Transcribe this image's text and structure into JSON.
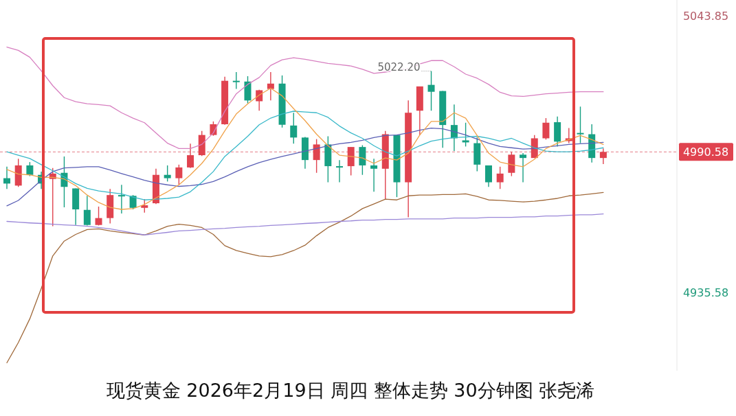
{
  "chart_data": {
    "type": "candlestick",
    "title": "现货黄金 2026年2月19日 周四 整体走势 30分钟图 张尧浠",
    "categories": [
      null,
      null,
      null,
      null,
      null,
      null,
      null,
      null,
      null,
      null,
      null,
      null,
      null,
      null,
      null,
      null,
      null,
      null,
      null,
      null,
      null,
      null,
      null,
      null,
      null,
      null,
      null,
      null,
      null,
      null,
      null,
      null,
      null,
      null,
      null,
      null,
      null,
      null,
      null,
      null,
      null,
      null,
      null,
      null,
      null,
      null,
      null,
      null,
      null,
      null,
      null,
      null,
      null
    ],
    "ohlc": [
      [
        4980.3,
        4984.8,
        4976.1,
        4978.2
      ],
      [
        4977.4,
        4987.9,
        4976.9,
        4985.3
      ],
      [
        4985.3,
        4986.6,
        4981.1,
        4981.6
      ],
      [
        4981.6,
        4982.9,
        4976.1,
        4978.2
      ],
      [
        4980.0,
        4984.3,
        4961.5,
        4982.1
      ],
      [
        4982.4,
        4988.8,
        4968.9,
        4976.9
      ],
      [
        4976.3,
        4976.3,
        4962.0,
        4968.1
      ],
      [
        4967.9,
        4973.4,
        4961.8,
        4962.0
      ],
      [
        4962.0,
        4969.2,
        4961.8,
        4964.7
      ],
      [
        4964.7,
        4976.1,
        4962.6,
        4973.7
      ],
      [
        4973.7,
        4977.7,
        4966.5,
        4973.2
      ],
      [
        4973.4,
        4973.7,
        4968.1,
        4968.7
      ],
      [
        4968.7,
        4972.1,
        4966.8,
        4969.7
      ],
      [
        4970.5,
        4984.0,
        4970.2,
        4981.6
      ],
      [
        4981.6,
        4985.3,
        4979.0,
        4980.3
      ],
      [
        4980.3,
        4985.6,
        4977.7,
        4984.5
      ],
      [
        4984.5,
        4993.8,
        4984.3,
        4989.3
      ],
      [
        4989.3,
        4998.8,
        4989.0,
        4997.2
      ],
      [
        4997.2,
        5002.5,
        4996.9,
        5001.4
      ],
      [
        5001.4,
        5020.0,
        5001.2,
        5018.4
      ],
      [
        5018.4,
        5021.8,
        5015.2,
        5018.1
      ],
      [
        5018.1,
        5020.2,
        5009.6,
        5010.7
      ],
      [
        5010.4,
        5014.9,
        5006.7,
        5014.7
      ],
      [
        5015.2,
        5021.8,
        5010.7,
        5017.3
      ],
      [
        5017.3,
        5020.5,
        5000.1,
        5001.2
      ],
      [
        5000.9,
        5005.9,
        4993.8,
        4996.2
      ],
      [
        4996.2,
        4996.4,
        4984.0,
        4987.4
      ],
      [
        4987.4,
        4995.6,
        4982.4,
        4993.5
      ],
      [
        4993.5,
        4996.7,
        4978.7,
        4985.0
      ],
      [
        4985.0,
        4987.4,
        4978.7,
        4984.8
      ],
      [
        4985.0,
        4992.5,
        4981.4,
        4992.5
      ],
      [
        4992.5,
        4993.2,
        4981.6,
        4985.3
      ],
      [
        4985.3,
        4987.9,
        4975.0,
        4984.0
      ],
      [
        4984.0,
        4998.8,
        4972.1,
        4997.5
      ],
      [
        4997.2,
        4997.2,
        4972.9,
        4978.7
      ],
      [
        4978.7,
        5010.7,
        4965.0,
        5005.9
      ],
      [
        5006.7,
        5016.2,
        4997.2,
        5016.2
      ],
      [
        5016.8,
        5022.2,
        5006.7,
        5014.1
      ],
      [
        5014.4,
        5014.4,
        4992.2,
        5001.1
      ],
      [
        5001.1,
        5009.1,
        4990.9,
        4995.9
      ],
      [
        4995.1,
        5002.0,
        4992.7,
        4994.3
      ],
      [
        4994.0,
        4996.2,
        4983.0,
        4985.6
      ],
      [
        4985.3,
        4985.3,
        4976.9,
        4978.7
      ],
      [
        4978.7,
        4984.8,
        4976.1,
        4982.1
      ],
      [
        4982.4,
        4990.6,
        4981.1,
        4989.5
      ],
      [
        4989.5,
        4990.1,
        4978.7,
        4988.2
      ],
      [
        4988.2,
        4997.2,
        4988.2,
        4995.9
      ],
      [
        4995.9,
        5003.8,
        4995.4,
        5002.0
      ],
      [
        5002.2,
        5004.4,
        4992.7,
        4994.6
      ],
      [
        4994.8,
        4999.9,
        4994.0,
        4995.9
      ],
      [
        4998.0,
        5008.3,
        4994.0,
        4997.7
      ],
      [
        4997.5,
        5001.4,
        4986.4,
        4988.2
      ],
      [
        4988.2,
        4991.9,
        4985.8,
        4990.58
      ]
    ],
    "colors": [
      "#17a083",
      "#e0434f",
      "#17a083",
      "#17a083",
      "#e0434f",
      "#17a083",
      "#17a083",
      "#17a083",
      "#e0434f",
      "#e0434f",
      "#17a083",
      "#17a083",
      "#e0434f",
      "#e0434f",
      "#17a083",
      "#e0434f",
      "#e0434f",
      "#e0434f",
      "#e0434f",
      "#e0434f",
      "#17a083",
      "#17a083",
      "#e0434f",
      "#e0434f",
      "#17a083",
      "#17a083",
      "#17a083",
      "#e0434f",
      "#17a083",
      "#17a083",
      "#e0434f",
      "#17a083",
      "#17a083",
      "#e0434f",
      "#17a083",
      "#e0434f",
      "#e0434f",
      "#17a083",
      "#17a083",
      "#17a083",
      "#17a083",
      "#17a083",
      "#17a083",
      "#e0434f",
      "#e0434f",
      "#17a083",
      "#e0434f",
      "#e0434f",
      "#17a083",
      "#e0434f",
      "#17a083",
      "#17a083",
      "#e0434f"
    ],
    "series": [
      {
        "type": "line",
        "color": "#d77fc0",
        "values": [
          5031.6,
          5030.3,
          5027.6,
          5022.3,
          5016.5,
          5011.8,
          5010.2,
          5009.4,
          5009.1,
          5008.6,
          5005.9,
          5003.8,
          5002.0,
          4998.0,
          4994.0,
          4991.9,
          4991.9,
          4993.5,
          4998.0,
          5006.5,
          5013.3,
          5017.0,
          5019.7,
          5024.4,
          5026.6,
          5027.4,
          5026.8,
          5026.0,
          5025.2,
          5024.7,
          5024.2,
          5022.9,
          5021.3,
          5021.8,
          5022.6,
          5023.1,
          5025.0,
          5026.3,
          5026.3,
          5023.9,
          5021.0,
          5019.4,
          5017.0,
          5013.9,
          5012.5,
          5012.3,
          5012.8,
          5013.3,
          5013.6,
          5013.9,
          5014.1,
          5014.1,
          5014.1
        ]
      },
      {
        "type": "line",
        "color": "#a0693a",
        "values": [
          4908.1,
          4916.0,
          4925.3,
          4937.2,
          4949.9,
          4955.7,
          4958.3,
          4960.2,
          4960.5,
          4959.7,
          4959.1,
          4958.6,
          4958.1,
          4959.7,
          4961.5,
          4962.3,
          4961.8,
          4961.0,
          4958.3,
          4953.9,
          4952.0,
          4950.9,
          4949.9,
          4949.6,
          4950.4,
          4952.0,
          4954.1,
          4957.8,
          4961.0,
          4963.1,
          4965.5,
          4968.4,
          4970.2,
          4972.1,
          4971.8,
          4973.4,
          4973.7,
          4973.7,
          4973.9,
          4973.9,
          4974.2,
          4973.2,
          4971.8,
          4971.6,
          4971.3,
          4971.0,
          4971.3,
          4971.8,
          4972.4,
          4973.4,
          4973.7,
          4974.2,
          4974.7
        ]
      },
      {
        "type": "line",
        "color": "#9a87d8",
        "values": [
          4963.4,
          4963.1,
          4962.8,
          4962.6,
          4962.3,
          4962.0,
          4961.8,
          4961.5,
          4961.0,
          4960.5,
          4959.7,
          4958.9,
          4958.1,
          4958.6,
          4959.1,
          4959.7,
          4959.9,
          4960.2,
          4960.5,
          4960.7,
          4961.0,
          4961.3,
          4961.5,
          4961.8,
          4962.0,
          4962.3,
          4962.6,
          4962.8,
          4963.1,
          4963.4,
          4963.6,
          4963.9,
          4963.9,
          4964.2,
          4964.2,
          4964.4,
          4964.4,
          4964.4,
          4964.4,
          4964.7,
          4964.7,
          4964.7,
          4965.0,
          4965.0,
          4965.0,
          4965.2,
          4965.2,
          4965.5,
          4965.5,
          4965.8,
          4966.0,
          4966.0,
          4966.3
        ]
      },
      {
        "type": "line",
        "color": "#5a5fb5",
        "values": [
          4969.5,
          4971.6,
          4975.5,
          4979.5,
          4982.9,
          4984.3,
          4984.5,
          4984.8,
          4984.8,
          4983.5,
          4982.1,
          4980.8,
          4979.5,
          4978.4,
          4977.7,
          4977.1,
          4977.4,
          4977.9,
          4979.0,
          4980.8,
          4982.9,
          4984.8,
          4986.4,
          4987.7,
          4988.8,
          4989.8,
          4990.9,
          4991.9,
          4993.0,
          4993.8,
          4994.3,
          4995.1,
          4996.2,
          4997.0,
          4997.2,
          4998.0,
          4999.1,
          4999.9,
          4999.6,
          4998.5,
          4997.2,
          4995.6,
          4994.0,
          4992.7,
          4992.2,
          4991.7,
          4991.9,
          4992.5,
          4993.0,
          4993.5,
          4993.8,
          4994.0,
          4994.3
        ]
      },
      {
        "type": "line",
        "color": "#38b8c9",
        "values": [
          4990.6,
          4989.3,
          4988.0,
          4985.6,
          4983.2,
          4980.8,
          4978.2,
          4976.3,
          4975.3,
          4974.7,
          4974.2,
          4972.9,
          4971.8,
          4972.1,
          4972.4,
          4972.9,
          4975.0,
          4978.7,
          4982.9,
          4988.8,
          4992.7,
          4996.7,
          5001.2,
          5003.8,
          5005.4,
          5006.5,
          5006.2,
          5005.9,
          5004.1,
          5000.7,
          4998.0,
          4995.9,
          4993.0,
          4990.6,
          4989.0,
          4990.9,
          4993.0,
          4994.8,
          4995.6,
          4996.2,
          4996.4,
          4996.7,
          4995.9,
          4994.8,
          4995.9,
          4994.0,
          4992.2,
          4990.9,
          4990.6,
          4990.6,
          4990.9,
          4991.4,
          4992.2
        ]
      },
      {
        "type": "line",
        "color": "#f0a24a",
        "values": [
          4983.7,
          4981.9,
          4981.6,
          4980.6,
          4980.6,
          4980.0,
          4977.4,
          4973.7,
          4970.8,
          4968.9,
          4968.1,
          4968.4,
          4970.0,
          4972.6,
          4975.0,
          4977.7,
          4981.6,
          4986.1,
          4991.7,
          4998.8,
          5005.4,
          5009.4,
          5012.8,
          5015.5,
          5012.5,
          5007.5,
          5002.8,
          4997.5,
          4993.0,
          4989.3,
          4988.8,
          4988.2,
          4986.1,
          4988.2,
          4987.4,
          4990.1,
          4997.2,
          5002.5,
          5002.5,
          5005.9,
          5003.8,
          4997.0,
          4990.1,
          4986.6,
          4985.6,
          4984.8,
          4987.7,
          4991.9,
          4994.0,
          4995.4,
          4997.0,
          4995.4,
          4993.5
        ]
      }
    ],
    "ylim": [
      4905,
      5050
    ],
    "yticks": [
      5043.85,
      4990.58,
      4935.58
    ],
    "ref_lines": [
      {
        "axis": "y",
        "value": 4990.58,
        "color": "#e47a84",
        "line_style": "dashed"
      }
    ],
    "annotations": [
      {
        "text": "5022.20",
        "y": 5022.2
      }
    ],
    "tick_labels": "y"
  }
}
